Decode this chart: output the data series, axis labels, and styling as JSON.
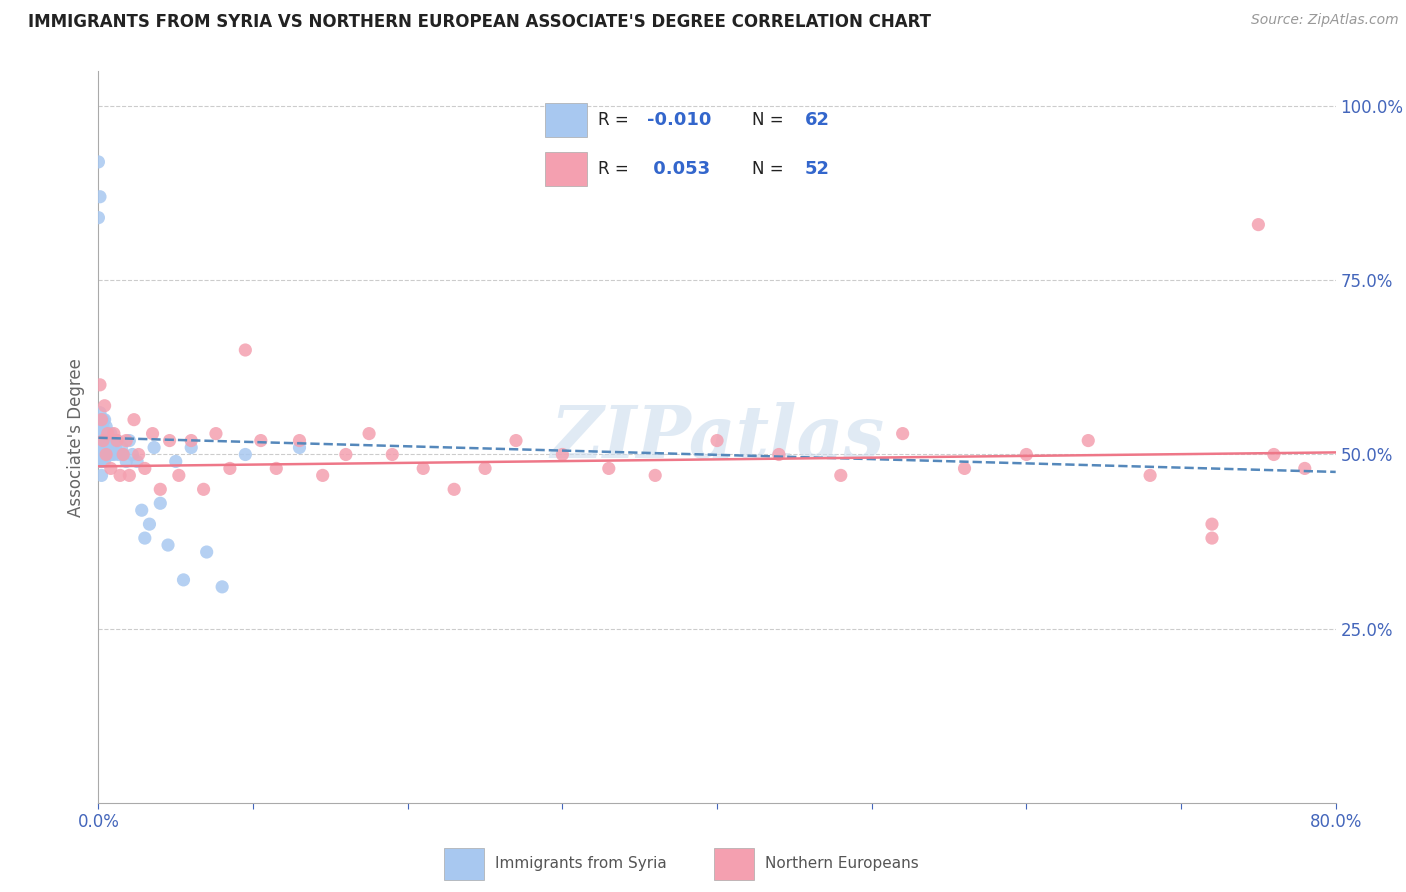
{
  "title": "IMMIGRANTS FROM SYRIA VS NORTHERN EUROPEAN ASSOCIATE'S DEGREE CORRELATION CHART",
  "source": "Source: ZipAtlas.com",
  "ylabel": "Associate's Degree",
  "xlim": [
    0.0,
    0.8
  ],
  "ylim": [
    0.0,
    1.05
  ],
  "xticks": [
    0.0,
    0.1,
    0.2,
    0.3,
    0.4,
    0.5,
    0.6,
    0.7,
    0.8
  ],
  "xticklabels": [
    "0.0%",
    "",
    "",
    "",
    "",
    "",
    "",
    "",
    "80.0%"
  ],
  "ytick_positions": [
    0.25,
    0.5,
    0.75,
    1.0
  ],
  "ytick_labels": [
    "25.0%",
    "50.0%",
    "75.0%",
    "100.0%"
  ],
  "R_syria": -0.01,
  "N_syria": 62,
  "R_northern": 0.053,
  "N_northern": 52,
  "syria_color": "#a8c8f0",
  "northern_color": "#f4a0b0",
  "syria_line_color": "#5588bb",
  "northern_line_color": "#ee7788",
  "watermark": "ZIPatlas",
  "legend_syria_label": "Immigrants from Syria",
  "legend_northern_label": "Northern Europeans",
  "syria_points_x": [
    0.0,
    0.001,
    0.0,
    0.001,
    0.001,
    0.001,
    0.001,
    0.001,
    0.001,
    0.001,
    0.001,
    0.002,
    0.002,
    0.002,
    0.002,
    0.002,
    0.002,
    0.002,
    0.002,
    0.003,
    0.003,
    0.003,
    0.003,
    0.003,
    0.003,
    0.004,
    0.004,
    0.004,
    0.004,
    0.005,
    0.005,
    0.005,
    0.006,
    0.006,
    0.007,
    0.008,
    0.008,
    0.009,
    0.01,
    0.01,
    0.011,
    0.012,
    0.013,
    0.015,
    0.016,
    0.018,
    0.02,
    0.022,
    0.025,
    0.028,
    0.03,
    0.033,
    0.036,
    0.04,
    0.045,
    0.05,
    0.055,
    0.06,
    0.07,
    0.08,
    0.095,
    0.13
  ],
  "syria_points_y": [
    0.92,
    0.87,
    0.84,
    0.56,
    0.55,
    0.54,
    0.53,
    0.52,
    0.51,
    0.5,
    0.49,
    0.55,
    0.54,
    0.53,
    0.52,
    0.51,
    0.5,
    0.49,
    0.47,
    0.55,
    0.54,
    0.52,
    0.51,
    0.5,
    0.49,
    0.55,
    0.53,
    0.51,
    0.49,
    0.54,
    0.52,
    0.5,
    0.53,
    0.51,
    0.52,
    0.53,
    0.5,
    0.51,
    0.52,
    0.5,
    0.51,
    0.52,
    0.5,
    0.51,
    0.5,
    0.49,
    0.52,
    0.5,
    0.49,
    0.42,
    0.38,
    0.4,
    0.51,
    0.43,
    0.37,
    0.49,
    0.32,
    0.51,
    0.36,
    0.31,
    0.5,
    0.51
  ],
  "northern_points_x": [
    0.001,
    0.002,
    0.003,
    0.004,
    0.005,
    0.006,
    0.008,
    0.01,
    0.012,
    0.014,
    0.016,
    0.018,
    0.02,
    0.023,
    0.026,
    0.03,
    0.035,
    0.04,
    0.046,
    0.052,
    0.06,
    0.068,
    0.076,
    0.085,
    0.095,
    0.105,
    0.115,
    0.13,
    0.145,
    0.16,
    0.175,
    0.19,
    0.21,
    0.23,
    0.25,
    0.27,
    0.3,
    0.33,
    0.36,
    0.4,
    0.44,
    0.48,
    0.52,
    0.56,
    0.6,
    0.64,
    0.68,
    0.72,
    0.76,
    0.78,
    0.75,
    0.72
  ],
  "northern_points_y": [
    0.6,
    0.55,
    0.52,
    0.57,
    0.5,
    0.53,
    0.48,
    0.53,
    0.52,
    0.47,
    0.5,
    0.52,
    0.47,
    0.55,
    0.5,
    0.48,
    0.53,
    0.45,
    0.52,
    0.47,
    0.52,
    0.45,
    0.53,
    0.48,
    0.65,
    0.52,
    0.48,
    0.52,
    0.47,
    0.5,
    0.53,
    0.5,
    0.48,
    0.45,
    0.48,
    0.52,
    0.5,
    0.48,
    0.47,
    0.52,
    0.5,
    0.47,
    0.53,
    0.48,
    0.5,
    0.52,
    0.47,
    0.38,
    0.5,
    0.48,
    0.83,
    0.4
  ]
}
